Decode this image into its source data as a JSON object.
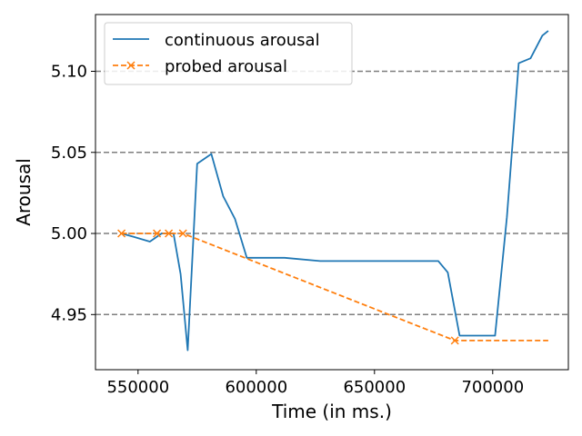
{
  "chart_data": {
    "type": "line",
    "xlabel": "Time (in ms.)",
    "ylabel": "Arousal",
    "xlim": [
      532000,
      732000
    ],
    "ylim": [
      4.916,
      5.135
    ],
    "xticks": [
      550000,
      600000,
      650000,
      700000
    ],
    "xtick_labels": [
      "550000",
      "600000",
      "650000",
      "700000"
    ],
    "yticks": [
      4.95,
      5.0,
      5.05,
      5.1
    ],
    "ytick_labels": [
      "4.95",
      "5.00",
      "5.05",
      "5.10"
    ],
    "grid": "horizontal dashed at y ticks",
    "legend_position": "top-left",
    "series": [
      {
        "name": "continuous arousal",
        "color": "#1f77b4",
        "style": "solid",
        "marker": "none",
        "points": [
          [
            543000,
            5.0
          ],
          [
            548000,
            4.998
          ],
          [
            555000,
            4.995
          ],
          [
            560000,
            5.0
          ],
          [
            565000,
            5.0
          ],
          [
            568000,
            4.975
          ],
          [
            571000,
            4.928
          ],
          [
            575000,
            5.043
          ],
          [
            581000,
            5.049
          ],
          [
            586000,
            5.023
          ],
          [
            591000,
            5.009
          ],
          [
            596000,
            4.985
          ],
          [
            600000,
            4.985
          ],
          [
            612000,
            4.985
          ],
          [
            627000,
            4.983
          ],
          [
            650000,
            4.983
          ],
          [
            677000,
            4.983
          ],
          [
            681000,
            4.976
          ],
          [
            686000,
            4.937
          ],
          [
            691000,
            4.937
          ],
          [
            701000,
            4.937
          ],
          [
            706000,
            5.01
          ],
          [
            711000,
            5.105
          ],
          [
            716000,
            5.108
          ],
          [
            721000,
            5.122
          ],
          [
            723500,
            5.125
          ]
        ]
      },
      {
        "name": "probed arousal",
        "color": "#ff7f0e",
        "style": "dashed",
        "marker": "x",
        "points": [
          [
            543000,
            5.0
          ],
          [
            558000,
            5.0
          ],
          [
            563000,
            5.0
          ],
          [
            569000,
            5.0
          ],
          [
            684000,
            4.934
          ],
          [
            723500,
            4.934
          ]
        ],
        "marker_points": [
          [
            543000,
            5.0
          ],
          [
            558000,
            5.0
          ],
          [
            563000,
            5.0
          ],
          [
            569000,
            5.0
          ],
          [
            684000,
            4.934
          ]
        ]
      }
    ]
  }
}
